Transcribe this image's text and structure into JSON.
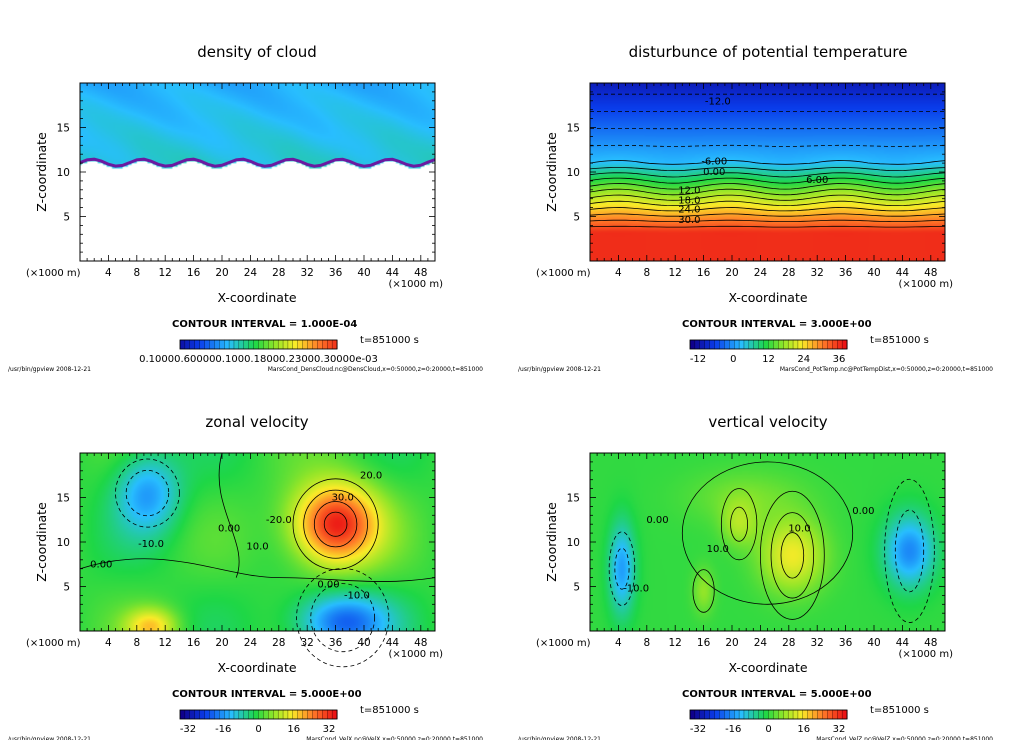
{
  "chart_data": [
    {
      "type": "heatmap",
      "id": "cloud",
      "title": "density of cloud",
      "xlabel": "X-coordinate",
      "ylabel": "Z-coordinate",
      "x_unit": "(×1000 m)",
      "y_unit": "(×1000 m)",
      "xlim": [
        0,
        50
      ],
      "ylim": [
        0,
        20
      ],
      "xticks": [
        4,
        8,
        12,
        16,
        20,
        24,
        28,
        32,
        36,
        40,
        44,
        48
      ],
      "yticks": [
        5,
        10,
        15
      ],
      "contour_interval": "CONTOUR INTERVAL = 1.000E-04",
      "time": "t=851000 s",
      "colorbar_labels": "0.10000.600000.1000.18000.23000.30000e-03",
      "footer_left": "/usr/bin/gpview   2008-12-21",
      "footer_right": "MarsCond_DensCloud.nc@DensCloud,x=0:50000,z=0:20000,t=851000",
      "contour_labels": []
    },
    {
      "type": "heatmap",
      "id": "ptemp",
      "title": "disturbunce of potential temperature",
      "xlabel": "X-coordinate",
      "ylabel": "Z-coordinate",
      "x_unit": "(×1000 m)",
      "y_unit": "(×1000 m)",
      "xlim": [
        0,
        50
      ],
      "ylim": [
        0,
        20
      ],
      "xticks": [
        4,
        8,
        12,
        16,
        20,
        24,
        28,
        32,
        36,
        40,
        44,
        48
      ],
      "yticks": [
        5,
        10,
        15
      ],
      "contour_interval": "CONTOUR INTERVAL = 3.000E+00",
      "time": "t=851000 s",
      "colorbar_ticks": [
        "-12",
        "0",
        "12",
        "24",
        "36"
      ],
      "colorbar_range": [
        -12,
        36
      ],
      "footer_left": "/usr/bin/gpview   2008-12-21",
      "footer_right": "MarsCond_PotTemp.nc@PotTempDist,x=0:50000,z=0:20000,t=851000",
      "contour_labels": [
        {
          "text": "-12.0",
          "x": 18,
          "z": 17.9
        },
        {
          "text": "-6.00",
          "x": 17.5,
          "z": 11.2
        },
        {
          "text": "0.00",
          "x": 17.5,
          "z": 10.0
        },
        {
          "text": "6.00",
          "x": 32,
          "z": 9.1
        },
        {
          "text": "12.0",
          "x": 14,
          "z": 7.9
        },
        {
          "text": "18.0",
          "x": 14,
          "z": 6.8
        },
        {
          "text": "24.0",
          "x": 14,
          "z": 5.8
        },
        {
          "text": "30.0",
          "x": 14,
          "z": 4.6
        }
      ]
    },
    {
      "type": "heatmap",
      "id": "zonal",
      "title": "zonal velocity",
      "xlabel": "X-coordinate",
      "ylabel": "Z-coordinate",
      "x_unit": "(×1000 m)",
      "y_unit": "(×1000 m)",
      "xlim": [
        0,
        50
      ],
      "ylim": [
        0,
        20
      ],
      "xticks": [
        4,
        8,
        12,
        16,
        20,
        24,
        28,
        32,
        36,
        40,
        44,
        48
      ],
      "yticks": [
        5,
        10,
        15
      ],
      "contour_interval": "CONTOUR INTERVAL = 5.000E+00",
      "time": "t=851000 s",
      "colorbar_ticks": [
        "-32",
        "-16",
        "0",
        "16",
        "32"
      ],
      "colorbar_range": [
        -32,
        32
      ],
      "footer_left": "/usr/bin/gpview   2008-12-21",
      "footer_right": "MarsCond_VelX.nc@VelX,x=0:50000,z=0:20000,t=851000",
      "contour_labels": [
        {
          "text": "30.0",
          "x": 37,
          "z": 15.0
        },
        {
          "text": "20.0",
          "x": 41,
          "z": 17.5
        },
        {
          "text": "-20.0",
          "x": 28,
          "z": 12.5
        },
        {
          "text": "0.00",
          "x": 21,
          "z": 11.5
        },
        {
          "text": "10.0",
          "x": 25,
          "z": 9.5
        },
        {
          "text": "-10.0",
          "x": 10,
          "z": 9.8
        },
        {
          "text": "0.00",
          "x": 3,
          "z": 7.5
        },
        {
          "text": "0.00",
          "x": 35,
          "z": 5.2
        },
        {
          "text": "-10.0",
          "x": 39,
          "z": 4.0
        }
      ]
    },
    {
      "type": "heatmap",
      "id": "vertical",
      "title": "vertical velocity",
      "xlabel": "X-coordinate",
      "ylabel": "Z-coordinate",
      "x_unit": "(×1000 m)",
      "y_unit": "(×1000 m)",
      "xlim": [
        0,
        50
      ],
      "ylim": [
        0,
        20
      ],
      "xticks": [
        4,
        8,
        12,
        16,
        20,
        24,
        28,
        32,
        36,
        40,
        44,
        48
      ],
      "yticks": [
        5,
        10,
        15
      ],
      "contour_interval": "CONTOUR INTERVAL = 5.000E+00",
      "time": "t=851000 s",
      "colorbar_ticks": [
        "-32",
        "-16",
        "0",
        "16",
        "32"
      ],
      "colorbar_range": [
        -32,
        32
      ],
      "footer_left": "/usr/bin/gpview   2008-12-21",
      "footer_right": "MarsCond_VelZ.nc@VelZ,x=0:50000,z=0:20000,t=851000",
      "contour_labels": [
        {
          "text": "0.00",
          "x": 9.5,
          "z": 12.5
        },
        {
          "text": "-10.0",
          "x": 6.5,
          "z": 4.8
        },
        {
          "text": "10.0",
          "x": 29.5,
          "z": 11.5
        },
        {
          "text": "10.0",
          "x": 18,
          "z": 9.2
        },
        {
          "text": "0.00",
          "x": 38.5,
          "z": 13.5
        }
      ]
    }
  ]
}
